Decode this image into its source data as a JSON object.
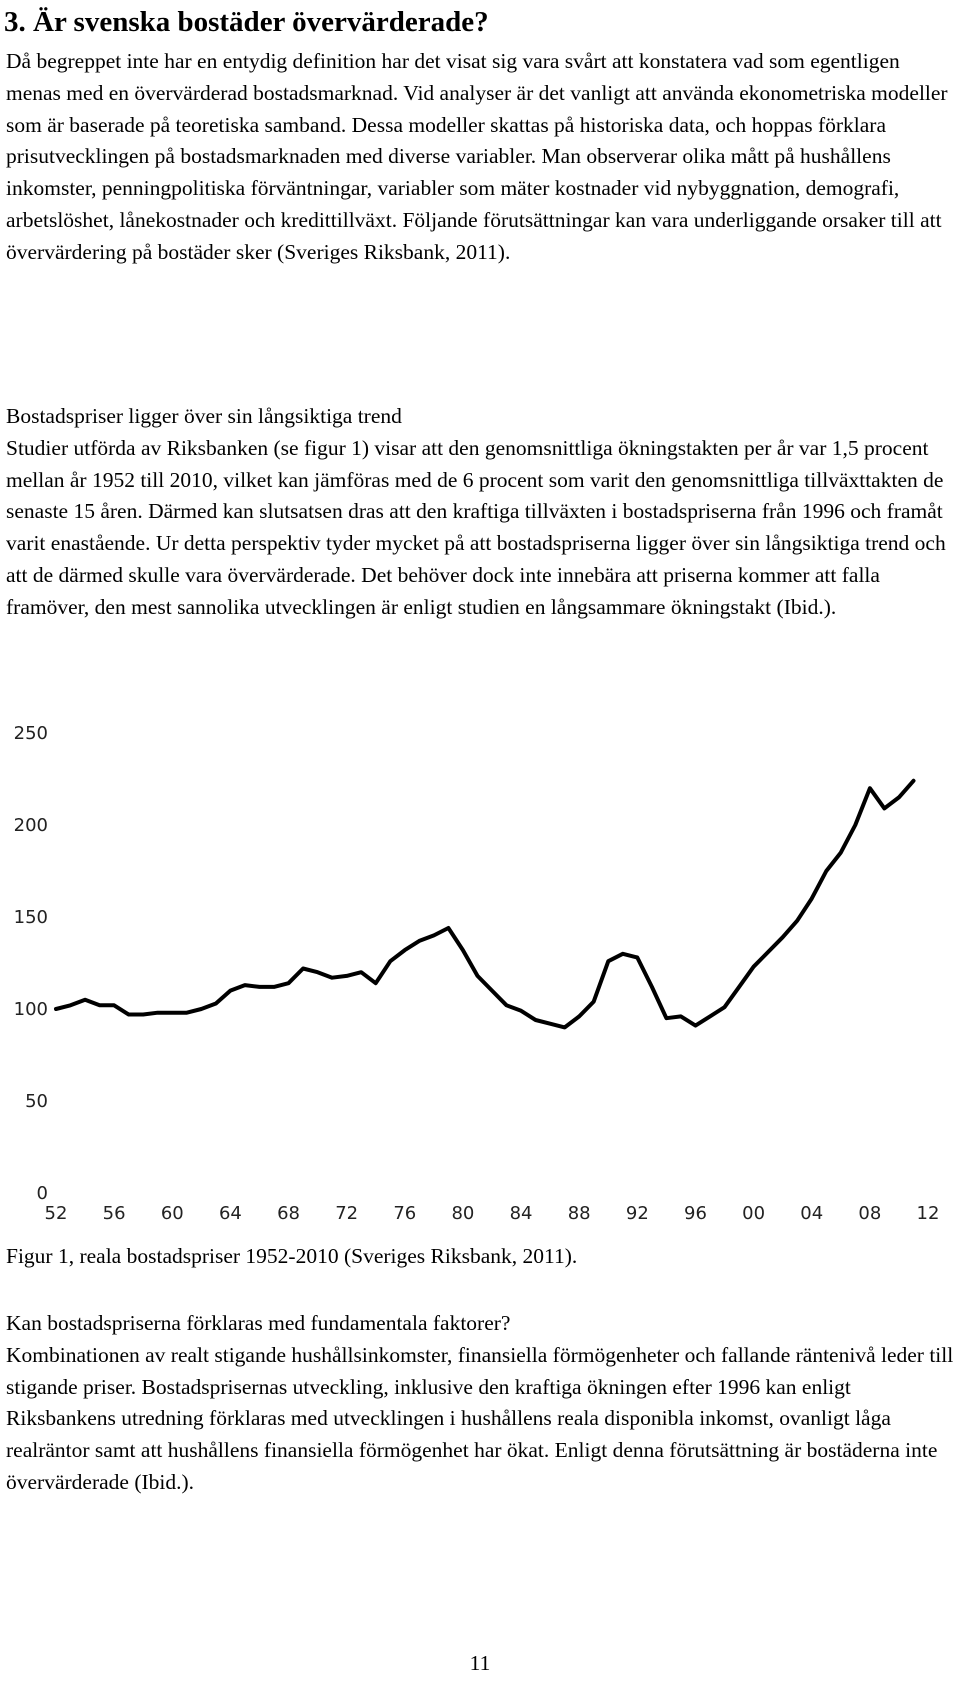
{
  "section": {
    "heading": "3. Är svenska bostäder övervärderade?",
    "paragraph1": "Då begreppet inte har en entydig definition har det visat sig vara svårt att konstatera vad som egentligen menas med en övervärderad bostadsmarknad. Vid analyser är det vanligt att använda ekonometriska modeller som är baserade på teoretiska samband. Dessa modeller skattas på historiska data, och hoppas förklara prisutvecklingen på bostadsmarknaden med diverse variabler. Man observerar olika mått på hushållens inkomster, penningpolitiska förväntningar, variabler som mäter kostnader vid nybyggnation, demografi, arbetslöshet, lånekostnader och kredittillväxt. Följande förutsättningar kan vara underliggande orsaker till att övervärdering på bostäder sker (Sveriges Riksbank, 2011).",
    "subheading1": "Bostadspriser ligger över sin långsiktiga trend",
    "paragraph2": "Studier utförda av Riksbanken (se figur 1) visar att den genomsnittliga ökningstakten per år var 1,5 procent mellan år 1952 till 2010, vilket kan jämföras med de 6 procent som varit den genomsnittliga tillväxttakten de senaste 15 åren. Därmed kan slutsatsen dras att den kraftiga tillväxten i bostadspriserna från 1996 och framåt varit enastående. Ur detta perspektiv tyder mycket på att bostadspriserna ligger över sin långsiktiga trend och att de därmed skulle vara övervärderade. Det behöver dock inte innebära att priserna kommer att falla framöver, den mest sannolika utvecklingen är enligt studien en långsammare ökningstakt (Ibid.).",
    "caption": "Figur 1, reala bostadspriser 1952-2010 (Sveriges Riksbank, 2011).",
    "subheading2": "Kan bostadspriserna förklaras med fundamentala faktorer?",
    "paragraph3": "Kombinationen av realt stigande hushållsinkomster, finansiella förmögenheter och fallande räntenivå leder till stigande priser. Bostadsprisernas utveckling, inklusive den kraftiga ökningen efter 1996 kan enligt Riksbankens utredning förklaras med utvecklingen i hushållens reala disponibla inkomst, ovanligt låga realräntor samt att hushållens finansiella förmögenhet har ökat. Enligt denna förutsättning är bostäderna inte övervärderade (Ibid.).",
    "page_number": "11"
  },
  "chart_data": {
    "type": "line",
    "title": "",
    "xlabel": "",
    "ylabel": "",
    "ylim": [
      0,
      250
    ],
    "xlim": [
      1952,
      2012
    ],
    "yticks": [
      "0",
      "50",
      "100",
      "150",
      "200",
      "250"
    ],
    "xticks": [
      "52",
      "56",
      "60",
      "64",
      "68",
      "72",
      "76",
      "80",
      "84",
      "88",
      "92",
      "96",
      "00",
      "04",
      "08",
      "12"
    ],
    "grid": false,
    "line_color": "#000000",
    "series": [
      {
        "x": [
          1952,
          1953,
          1954,
          1955,
          1956,
          1957,
          1958,
          1959,
          1960,
          1961,
          1962,
          1963,
          1964,
          1965,
          1966,
          1967,
          1968,
          1969,
          1970,
          1971,
          1972,
          1973,
          1974,
          1975,
          1976,
          1977,
          1978,
          1979,
          1980,
          1981,
          1982,
          1983,
          1984,
          1985,
          1986,
          1987,
          1988,
          1989,
          1990,
          1991,
          1992,
          1993,
          1994,
          1995,
          1996,
          1997,
          1998,
          1999,
          2000,
          2001,
          2002,
          2003,
          2004,
          2005,
          2006,
          2007,
          2008,
          2009,
          2010,
          2011
        ],
        "y": [
          100,
          102,
          105,
          102,
          102,
          97,
          97,
          98,
          98,
          98,
          100,
          103,
          110,
          113,
          112,
          112,
          114,
          122,
          120,
          117,
          118,
          120,
          114,
          126,
          132,
          137,
          140,
          144,
          132,
          118,
          110,
          102,
          99,
          94,
          92,
          90,
          96,
          104,
          126,
          130,
          128,
          112,
          95,
          96,
          91,
          96,
          101,
          112,
          123,
          131,
          139,
          148,
          160,
          175,
          185,
          200,
          220,
          209,
          215,
          224
        ]
      }
    ]
  }
}
